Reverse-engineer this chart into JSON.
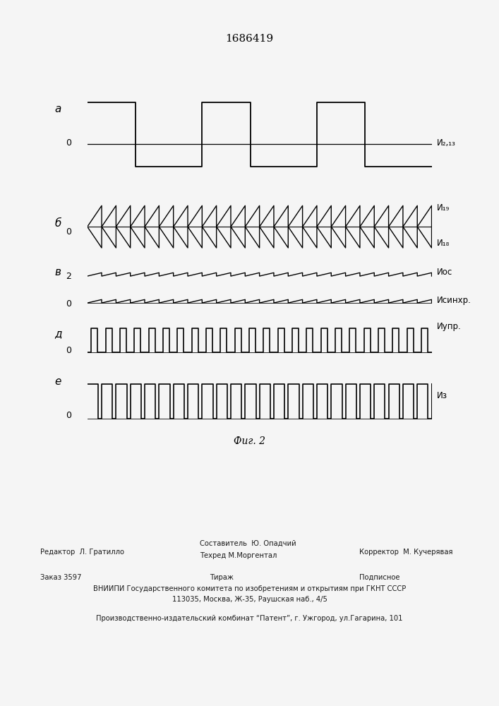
{
  "title": "1686419",
  "fig_label": "Фиг. 2",
  "paper_color": "#f5f5f5",
  "waveform_color": "#000000",
  "signal_labels": {
    "a": "И₂,₁₃",
    "b_top": "И₁₉",
    "b_bot": "И₁₈",
    "v_top": "Иос",
    "v_bot": "Исинхр.",
    "d": "Иупр.",
    "e": "Из"
  },
  "T": 1.0,
  "N": 3,
  "tri_freq_mult": 4,
  "panel_a_high": 1.0,
  "panel_a_low": -0.55,
  "panel_a_duty": 0.42,
  "footer": {
    "editor": "Редактор  Л. Гратилло",
    "compiler_line1": "Составитель  Ю. Опадчий",
    "compiler_line2": "Техред М.Моргентал",
    "corrector": "Корректор  М. Кучерявая",
    "order": "Заказ 3597",
    "tirazh": "Тираж",
    "podpisnoe": "Подписное",
    "vniipи": "ВНИИПИ Государственного комитета по изобретениям и открытиям при ГКНТ СССР",
    "address": "113035, Москва, Ж-35, Раушская наб., 4/5",
    "plant": "Производственно-издательский комбинат “Патент”, г. Ужгород, ул.Гагарина, 101"
  }
}
